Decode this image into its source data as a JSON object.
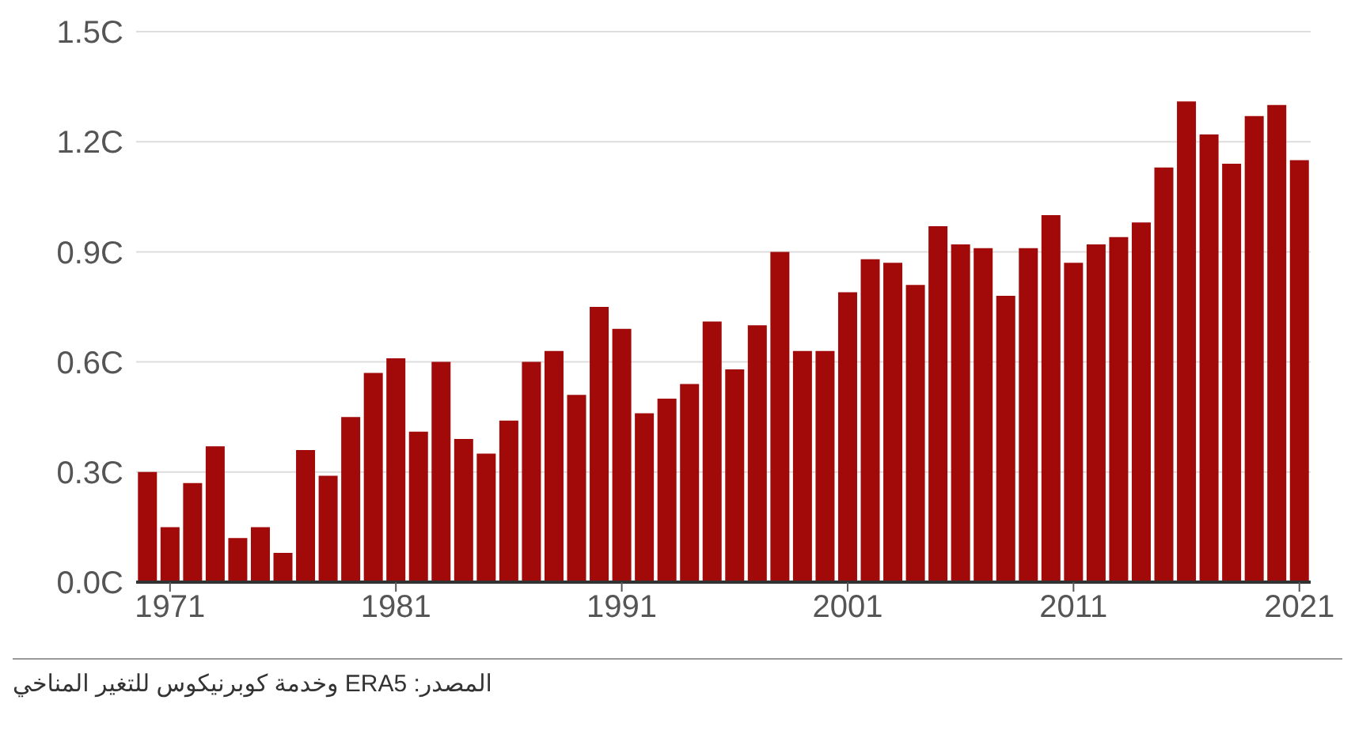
{
  "chart_data": {
    "type": "bar",
    "categories": [
      null,
      "1971",
      null,
      null,
      null,
      null,
      null,
      null,
      null,
      null,
      null,
      "1981",
      null,
      null,
      null,
      null,
      null,
      null,
      null,
      null,
      null,
      "1991",
      null,
      null,
      null,
      null,
      null,
      null,
      null,
      null,
      null,
      "2001",
      null,
      null,
      null,
      null,
      null,
      null,
      null,
      null,
      null,
      "2011",
      null,
      null,
      null,
      null,
      null,
      null,
      null,
      null,
      null,
      "2021"
    ],
    "values": [
      0.3,
      0.15,
      0.27,
      0.37,
      0.12,
      0.15,
      0.08,
      0.36,
      0.29,
      0.45,
      0.57,
      0.61,
      0.41,
      0.6,
      0.39,
      0.35,
      0.44,
      0.6,
      0.63,
      0.51,
      0.75,
      0.69,
      0.46,
      0.5,
      0.54,
      0.71,
      0.58,
      0.7,
      0.9,
      0.63,
      0.63,
      0.79,
      0.88,
      0.87,
      0.81,
      0.97,
      0.92,
      0.91,
      0.78,
      0.91,
      1.0,
      0.87,
      0.92,
      0.94,
      0.98,
      1.13,
      1.31,
      1.22,
      1.14,
      1.27,
      1.3,
      1.15
    ],
    "color": "#a20a0a",
    "ylim": [
      0,
      1.5
    ],
    "yticks": [
      {
        "value": 0,
        "label": "0.0C"
      },
      {
        "value": 0.3,
        "label": "0.3C"
      },
      {
        "value": 0.6,
        "label": "0.6C"
      },
      {
        "value": 0.9,
        "label": "0.9C"
      },
      {
        "value": 1.2,
        "label": "1.2C"
      },
      {
        "value": 1.5,
        "label": "1.5C"
      }
    ],
    "grid": "y",
    "annotations": [
      "المصدر: ERA5 وخدمة كوبرنيكوس للتغير المناخي"
    ]
  }
}
